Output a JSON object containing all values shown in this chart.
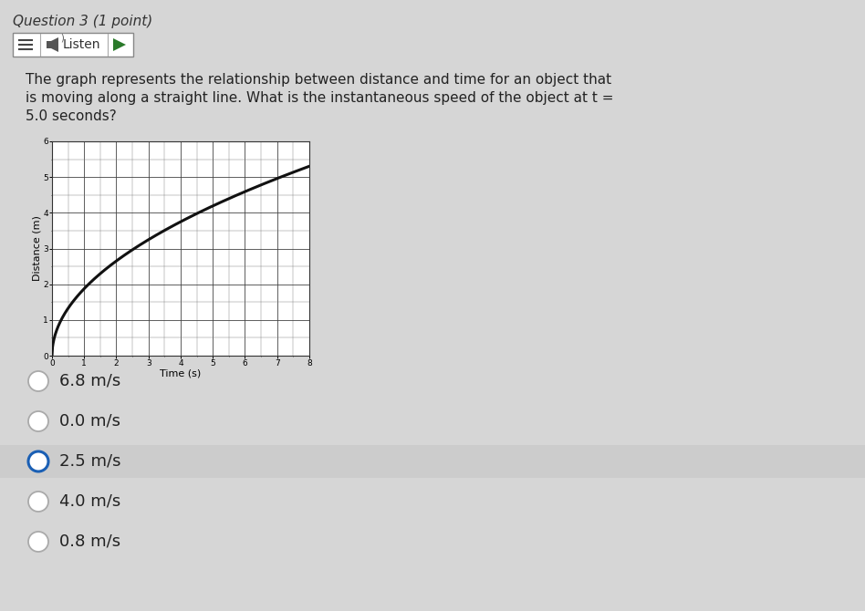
{
  "bg_color": "#d6d6d6",
  "header_text": "Question 3 (1 point)",
  "question_text_line1": "The graph represents the relationship between distance and time for an object that",
  "question_text_line2": "is moving along a straight line. What is the instantaneous speed of the object at t =",
  "question_text_line3": "5.0 seconds?",
  "graph": {
    "xlim": [
      0,
      8
    ],
    "ylim": [
      0,
      6
    ],
    "xlabel": "Time (s)",
    "ylabel": "Distance (m)",
    "xticks": [
      0,
      1,
      2,
      3,
      4,
      5,
      6,
      7,
      8
    ],
    "yticks": [
      0,
      1,
      2,
      3,
      4,
      5,
      6
    ],
    "curve_color": "#111111",
    "curve_linewidth": 2.2,
    "major_grid_color": "#444444",
    "major_grid_linewidth": 0.6,
    "minor_grid_color": "#777777",
    "minor_grid_linewidth": 0.3,
    "axis_label_fontsize": 7,
    "tick_fontsize": 6.5,
    "curve_param": 1.875
  },
  "answer_choices": [
    {
      "text": "6.8 m/s",
      "selected": false
    },
    {
      "text": "0.0 m/s",
      "selected": false
    },
    {
      "text": "2.5 m/s",
      "selected": true
    },
    {
      "text": "4.0 m/s",
      "selected": false
    },
    {
      "text": "0.8 m/s",
      "selected": false
    }
  ],
  "answer_fontsize": 13,
  "selected_ring_color": "#1a5fb4",
  "unselected_ring_color": "#aaaaaa",
  "highlight_color": "#cccccc",
  "listen_btn_color": "#ffffff",
  "listen_border_color": "#888888",
  "play_btn_color": "#2a7a2a"
}
